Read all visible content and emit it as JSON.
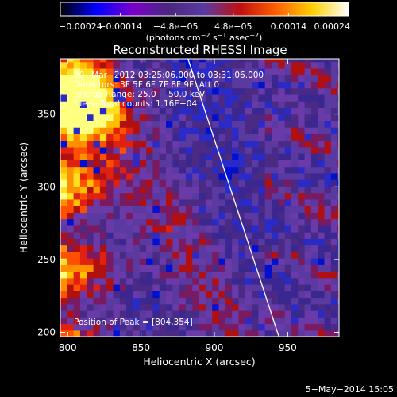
{
  "chart_data": {
    "type": "heatmap",
    "title": "Reconstructed RHESSI Image",
    "xlabel": "Heliocentric X (arcsec)",
    "ylabel": "Heliocentric Y (arcsec)",
    "xlim": [
      795,
      985
    ],
    "ylim": [
      197,
      388
    ],
    "x_ticks": [
      800,
      850,
      900,
      950
    ],
    "y_ticks": [
      200,
      250,
      300,
      350
    ],
    "colorbar": {
      "min": -0.00024,
      "max": 0.00024,
      "ticks": [
        {
          "value": -0.00024,
          "label": "−0.00024"
        },
        {
          "value": -0.00014,
          "label": "−0.00014"
        },
        {
          "value": -4.8e-05,
          "label": "−4.8e−05"
        },
        {
          "value": 4.8e-05,
          "label": "4.8e−05"
        },
        {
          "value": 0.00014,
          "label": "0.00014"
        },
        {
          "value": 0.00024,
          "label": "0.00024"
        }
      ],
      "unit_parts": [
        "(photons cm",
        "−2",
        " s",
        "−1",
        " asec",
        "−2",
        ")"
      ],
      "colors": [
        "#000000",
        "#0000ff",
        "#7a00c8",
        "#4a2880",
        "#5a3aa0",
        "#c01010",
        "#ff6000",
        "#ffd000",
        "#ffffff"
      ]
    },
    "annotations": [
      "20−Mar−2012 03:25:06.000 to 03:31:06.000",
      "Detectors: 3F 5F 6F 7F 8F 9F, Att 0",
      "Energy Range: 25.0 − 50.0 keV",
      "Clean    Total counts: 1.16E+04"
    ],
    "peak_text": "Position of Peak = [804,354]",
    "peak": [
      804,
      354
    ],
    "limb_line": {
      "from": [
        882,
        388
      ],
      "to": [
        944,
        197
      ],
      "color": "#ffffff"
    },
    "pixel_step_arcsec": 4.5
  },
  "footer": {
    "date": "5−May−2014 15:05"
  }
}
